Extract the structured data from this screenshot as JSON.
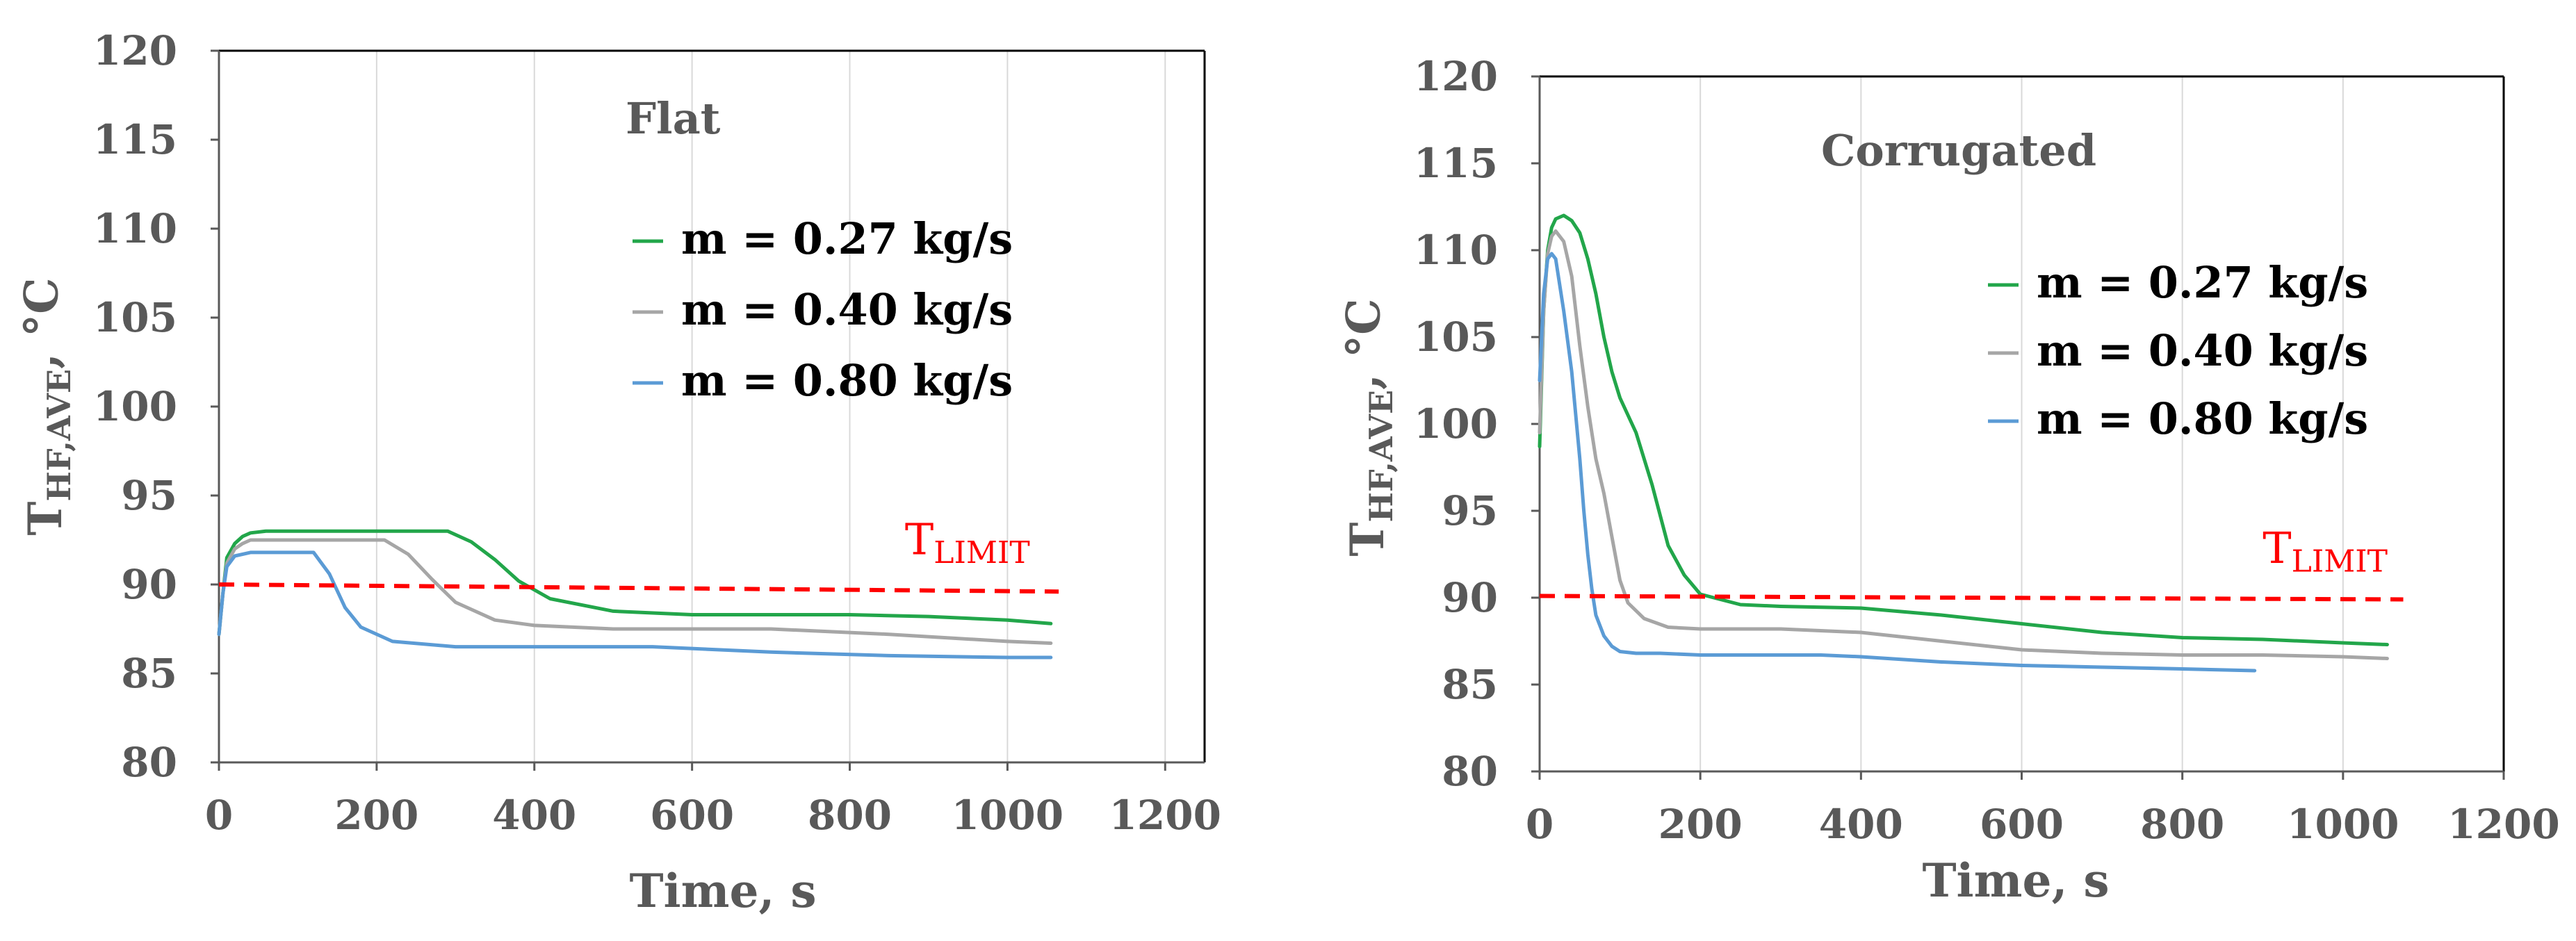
{
  "chart_data": [
    {
      "type": "line",
      "title": "Flat",
      "xlabel": "Time, s",
      "ylabel": {
        "main": "T",
        "sub": "HF,AVE",
        "suffix": ", °C"
      },
      "xlim": [
        0,
        1250
      ],
      "ylim": [
        80,
        120
      ],
      "xticks": [
        0,
        200,
        400,
        600,
        800,
        1000,
        1200
      ],
      "yticks": [
        80,
        85,
        90,
        95,
        100,
        105,
        110,
        115,
        120
      ],
      "grid": "vertical",
      "legend_position": "upper-right",
      "series": [
        {
          "name": "m = 0.27 kg/s",
          "color": "#22a64a",
          "x": [
            0,
            5,
            10,
            20,
            30,
            40,
            60,
            100,
            200,
            290,
            320,
            350,
            380,
            420,
            500,
            600,
            800,
            900,
            1000,
            1055
          ],
          "y": [
            87.2,
            89.5,
            91.5,
            92.3,
            92.7,
            92.9,
            93.0,
            93.0,
            93.0,
            93.0,
            92.4,
            91.4,
            90.2,
            89.2,
            88.5,
            88.3,
            88.3,
            88.2,
            88.0,
            87.8
          ]
        },
        {
          "name": "m = 0.40 kg/s",
          "color": "#a6a6a6",
          "x": [
            0,
            5,
            10,
            20,
            30,
            40,
            60,
            100,
            150,
            210,
            240,
            270,
            300,
            350,
            400,
            500,
            700,
            850,
            1000,
            1055
          ],
          "y": [
            87.2,
            89.5,
            91.2,
            92.0,
            92.3,
            92.5,
            92.5,
            92.5,
            92.5,
            92.5,
            91.7,
            90.3,
            89.0,
            88.0,
            87.7,
            87.5,
            87.5,
            87.2,
            86.8,
            86.7
          ]
        },
        {
          "name": "m = 0.80 kg/s",
          "color": "#5b9bd5",
          "x": [
            0,
            5,
            10,
            20,
            40,
            60,
            100,
            120,
            140,
            160,
            180,
            220,
            300,
            400,
            550,
            700,
            850,
            1000,
            1055
          ],
          "y": [
            87.2,
            89.5,
            91.0,
            91.6,
            91.8,
            91.8,
            91.8,
            91.8,
            90.6,
            88.7,
            87.6,
            86.8,
            86.5,
            86.5,
            86.5,
            86.2,
            86.0,
            85.9,
            85.9
          ]
        },
        {
          "name": "T_LIMIT",
          "color": "#ff0000",
          "dashed": true,
          "x": [
            0,
            1065
          ],
          "y": [
            90.0,
            89.6
          ]
        }
      ],
      "annotations": [
        {
          "text": "T",
          "sub": "LIMIT",
          "color": "#ff0000",
          "x": 870,
          "y": 91.7
        }
      ]
    },
    {
      "type": "line",
      "title": "Corrugated",
      "xlabel": "Time, s",
      "ylabel": {
        "main": "T",
        "sub": "HF,AVE",
        "suffix": ", °C"
      },
      "xlim": [
        0,
        1200
      ],
      "ylim": [
        80,
        120
      ],
      "xticks": [
        0,
        200,
        400,
        600,
        800,
        1000,
        1200
      ],
      "yticks": [
        80,
        85,
        90,
        95,
        100,
        105,
        110,
        115,
        120
      ],
      "grid": "vertical",
      "legend_position": "upper-right",
      "series": [
        {
          "name": "m = 0.27 kg/s",
          "color": "#22a64a",
          "x": [
            0,
            5,
            10,
            15,
            20,
            30,
            40,
            50,
            60,
            70,
            80,
            90,
            100,
            120,
            140,
            160,
            180,
            200,
            250,
            300,
            400,
            500,
            600,
            700,
            800,
            900,
            1000,
            1055
          ],
          "y": [
            98.7,
            106.5,
            110.0,
            111.3,
            111.8,
            112.0,
            111.7,
            111.0,
            109.5,
            107.5,
            105.0,
            103.0,
            101.5,
            99.5,
            96.5,
            93.0,
            91.3,
            90.2,
            89.6,
            89.5,
            89.4,
            89.0,
            88.5,
            88.0,
            87.7,
            87.6,
            87.4,
            87.3
          ]
        },
        {
          "name": "m = 0.40 kg/s",
          "color": "#a6a6a6",
          "x": [
            0,
            5,
            10,
            15,
            20,
            30,
            40,
            50,
            60,
            70,
            80,
            90,
            100,
            110,
            130,
            160,
            200,
            300,
            400,
            500,
            600,
            700,
            800,
            900,
            1000,
            1055
          ],
          "y": [
            99.5,
            106.5,
            109.8,
            110.8,
            111.1,
            110.5,
            108.5,
            104.5,
            101.0,
            98.0,
            96.0,
            93.5,
            91.0,
            89.7,
            88.8,
            88.3,
            88.2,
            88.2,
            88.0,
            87.5,
            87.0,
            86.8,
            86.7,
            86.7,
            86.6,
            86.5
          ]
        },
        {
          "name": "m = 0.80 kg/s",
          "color": "#5b9bd5",
          "x": [
            0,
            5,
            10,
            15,
            20,
            25,
            30,
            40,
            45,
            50,
            55,
            60,
            65,
            70,
            80,
            90,
            100,
            120,
            150,
            200,
            300,
            350,
            400,
            500,
            600,
            700,
            800,
            890
          ],
          "y": [
            102.5,
            107.5,
            109.5,
            109.8,
            109.5,
            108.0,
            106.5,
            103.0,
            100.5,
            98.0,
            95.0,
            92.5,
            90.5,
            89.0,
            87.8,
            87.2,
            86.9,
            86.8,
            86.8,
            86.7,
            86.7,
            86.7,
            86.6,
            86.3,
            86.1,
            86.0,
            85.9,
            85.8
          ]
        },
        {
          "name": "T_LIMIT",
          "color": "#ff0000",
          "dashed": true,
          "x": [
            0,
            1075
          ],
          "y": [
            90.1,
            89.9
          ]
        }
      ],
      "annotations": [
        {
          "text": "T",
          "sub": "LIMIT",
          "color": "#ff0000",
          "x": 900,
          "y": 92.0
        }
      ]
    }
  ]
}
